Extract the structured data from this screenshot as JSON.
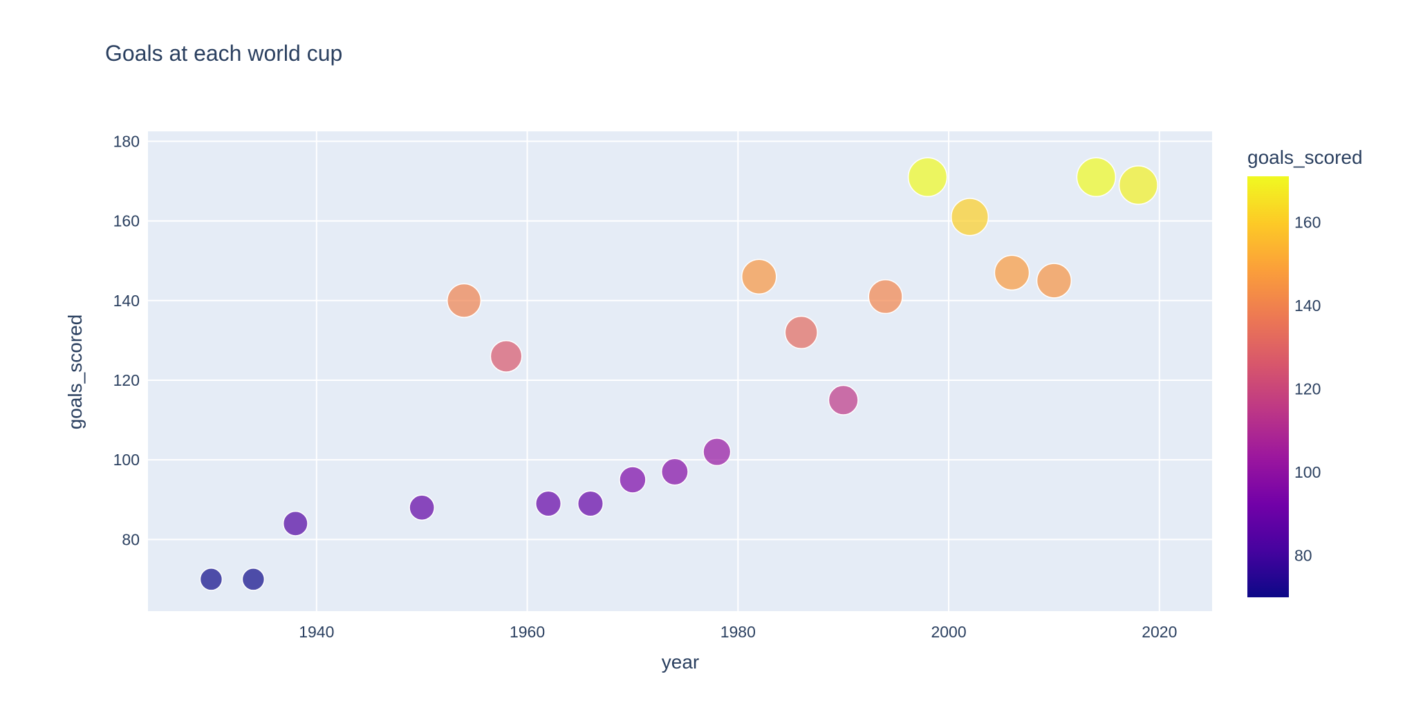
{
  "chart_data": {
    "type": "scatter",
    "title": "Goals at each world cup",
    "xlabel": "year",
    "ylabel": "goals_scored",
    "xlim": [
      1924,
      2025
    ],
    "ylim": [
      62,
      182.5
    ],
    "x_ticks": [
      1940,
      1960,
      1980,
      2000,
      2020
    ],
    "y_ticks": [
      80,
      100,
      120,
      140,
      160,
      180
    ],
    "grid": true,
    "color_by": "goals_scored",
    "size_by": "goals_scored",
    "colorbar": {
      "title": "goals_scored",
      "range": [
        70,
        171
      ],
      "ticks": [
        80,
        100,
        120,
        140,
        160
      ]
    },
    "points": [
      {
        "x": 1930,
        "y": 70
      },
      {
        "x": 1934,
        "y": 70
      },
      {
        "x": 1938,
        "y": 84
      },
      {
        "x": 1950,
        "y": 88
      },
      {
        "x": 1954,
        "y": 140
      },
      {
        "x": 1958,
        "y": 126
      },
      {
        "x": 1962,
        "y": 89
      },
      {
        "x": 1966,
        "y": 89
      },
      {
        "x": 1970,
        "y": 95
      },
      {
        "x": 1974,
        "y": 97
      },
      {
        "x": 1978,
        "y": 102
      },
      {
        "x": 1982,
        "y": 146
      },
      {
        "x": 1986,
        "y": 132
      },
      {
        "x": 1990,
        "y": 115
      },
      {
        "x": 1994,
        "y": 141
      },
      {
        "x": 1998,
        "y": 171
      },
      {
        "x": 2002,
        "y": 161
      },
      {
        "x": 2006,
        "y": 147
      },
      {
        "x": 2010,
        "y": 145
      },
      {
        "x": 2014,
        "y": 171
      },
      {
        "x": 2018,
        "y": 169
      }
    ]
  },
  "colors": {
    "plot_background": "#E5ECF6",
    "gridline": "#ffffff",
    "text": "#2a3f5f",
    "marker_outline": "#ffffff",
    "colorscale_plasma": [
      "#0d0887",
      "#46039f",
      "#7201a8",
      "#9c179e",
      "#bd3786",
      "#d8576b",
      "#ed7953",
      "#fb9f3a",
      "#fdca26",
      "#f0f921"
    ]
  }
}
